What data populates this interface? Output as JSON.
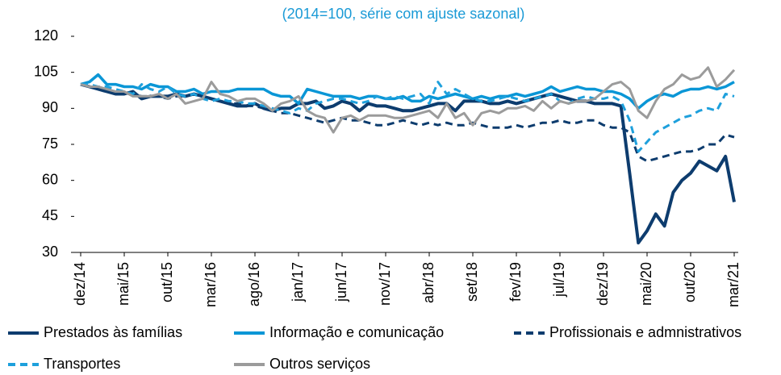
{
  "chart_data": {
    "type": "line",
    "title": "(2014=100, série com ajuste sazonal)",
    "categories": [
      "dez/14",
      null,
      null,
      null,
      null,
      "mai/15",
      null,
      null,
      null,
      null,
      "out/15",
      null,
      null,
      null,
      null,
      "mar/16",
      null,
      null,
      null,
      null,
      "ago/16",
      null,
      null,
      null,
      null,
      "jan/17",
      null,
      null,
      null,
      null,
      "jun/17",
      null,
      null,
      null,
      null,
      "nov/17",
      null,
      null,
      null,
      null,
      "abr/18",
      null,
      null,
      null,
      null,
      "set/18",
      null,
      null,
      null,
      null,
      "fev/19",
      null,
      null,
      null,
      null,
      "jul/19",
      null,
      null,
      null,
      null,
      "dez/19",
      null,
      null,
      null,
      null,
      "mai/20",
      null,
      null,
      null,
      null,
      "out/20",
      null,
      null,
      null,
      null,
      "mar/21"
    ],
    "ylim": [
      30,
      120
    ],
    "yticks": [
      30,
      45,
      60,
      75,
      90,
      105,
      120
    ],
    "series": [
      {
        "name": "Prestados às famílias",
        "color": "#0d3c6e",
        "style": "solid",
        "values": [
          100,
          99,
          98,
          97,
          96,
          96,
          97,
          94,
          95,
          95,
          95,
          96,
          95,
          96,
          95,
          94,
          93,
          92,
          91,
          91,
          92,
          90,
          89,
          90,
          90,
          92,
          92,
          93,
          90,
          91,
          93,
          92,
          89,
          92,
          91,
          91,
          90,
          89,
          89,
          90,
          91,
          92,
          92,
          89,
          93,
          93,
          93,
          92,
          92,
          93,
          92,
          93,
          94,
          95,
          96,
          95,
          94,
          93,
          93,
          92,
          92,
          92,
          91,
          63,
          34,
          39,
          46,
          41,
          55,
          60,
          63,
          68,
          66,
          64,
          70,
          51
        ]
      },
      {
        "name": "Informação e comunicação",
        "color": "#0a96d6",
        "style": "solid",
        "values": [
          100,
          101,
          104,
          100,
          100,
          99,
          99,
          98,
          100,
          99,
          99,
          97,
          97,
          98,
          96,
          97,
          97,
          97,
          98,
          98,
          98,
          98,
          96,
          95,
          95,
          92,
          98,
          97,
          96,
          95,
          95,
          95,
          94,
          95,
          95,
          94,
          94,
          95,
          93,
          93,
          95,
          94,
          95,
          96,
          95,
          94,
          95,
          94,
          95,
          95,
          96,
          95,
          96,
          97,
          99,
          97,
          98,
          99,
          98,
          98,
          97,
          97,
          96,
          94,
          90,
          93,
          95,
          96,
          95,
          97,
          98,
          98,
          99,
          98,
          99,
          101
        ]
      },
      {
        "name": "Profissionais e admnistrativos",
        "color": "#0d3c6e",
        "style": "dashed",
        "values": [
          100,
          99,
          99,
          98,
          97,
          96,
          96,
          95,
          95,
          95,
          94,
          95,
          95,
          96,
          95,
          94,
          93,
          92,
          92,
          91,
          91,
          90,
          89,
          88,
          88,
          87,
          86,
          85,
          84,
          85,
          86,
          85,
          85,
          84,
          83,
          83,
          84,
          85,
          84,
          83,
          84,
          83,
          84,
          83,
          83,
          84,
          83,
          82,
          82,
          82,
          83,
          82,
          83,
          84,
          84,
          85,
          84,
          84,
          85,
          85,
          83,
          82,
          82,
          80,
          70,
          68,
          69,
          70,
          71,
          72,
          72,
          73,
          75,
          75,
          79,
          78
        ]
      },
      {
        "name": "Transportes",
        "color": "#1ea0dc",
        "style": "dashed",
        "values": [
          100,
          100,
          99,
          99,
          98,
          97,
          96,
          100,
          98,
          97,
          99,
          96,
          95,
          96,
          94,
          93,
          94,
          93,
          93,
          92,
          92,
          91,
          90,
          89,
          88,
          90,
          89,
          92,
          93,
          94,
          94,
          93,
          92,
          93,
          95,
          94,
          95,
          94,
          95,
          96,
          92,
          101,
          96,
          98,
          96,
          94,
          93,
          93,
          94,
          95,
          94,
          93,
          94,
          95,
          96,
          93,
          92,
          94,
          95,
          94,
          94,
          95,
          93,
          85,
          72,
          76,
          80,
          82,
          84,
          86,
          87,
          89,
          90,
          89,
          96,
          95
        ]
      },
      {
        "name": "Outros serviços",
        "color": "#9b9b9b",
        "style": "solid",
        "values": [
          100,
          99,
          99,
          98,
          97,
          97,
          95,
          95,
          95,
          96,
          94,
          96,
          92,
          93,
          94,
          101,
          96,
          95,
          93,
          94,
          94,
          92,
          89,
          92,
          93,
          95,
          89,
          87,
          86,
          80,
          86,
          87,
          85,
          87,
          87,
          87,
          86,
          86,
          87,
          88,
          89,
          86,
          92,
          86,
          88,
          83,
          88,
          89,
          88,
          90,
          90,
          91,
          89,
          93,
          90,
          93,
          92,
          93,
          93,
          94,
          97,
          100,
          101,
          98,
          89,
          86,
          93,
          98,
          100,
          104,
          102,
          103,
          107,
          99,
          102,
          106
        ]
      }
    ]
  }
}
